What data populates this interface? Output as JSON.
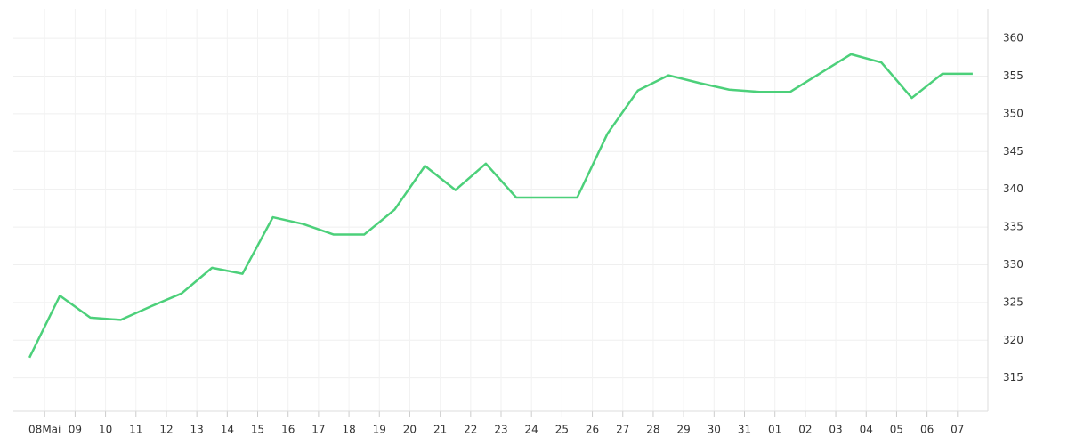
{
  "chart_data": {
    "type": "line",
    "x": [
      0,
      1,
      2,
      3,
      4,
      5,
      6,
      7,
      8,
      9,
      10,
      11,
      12,
      13,
      14,
      15,
      16,
      17,
      18,
      19,
      20,
      21,
      22,
      23,
      24,
      25,
      26,
      27,
      28,
      29,
      30,
      31
    ],
    "series": [
      {
        "color": "#4cd07a",
        "values": [
          317.7,
          325.9,
          323.0,
          322.7,
          324.5,
          326.2,
          329.6,
          328.8,
          336.3,
          335.4,
          334.0,
          334.0,
          337.3,
          343.1,
          339.9,
          343.4,
          338.9,
          338.9,
          338.9,
          347.4,
          353.1,
          355.1,
          354.1,
          353.2,
          352.9,
          352.9,
          355.4,
          357.9,
          356.8,
          352.1,
          355.3,
          355.3
        ]
      }
    ],
    "xlim": [
      -0.53,
      31.5
    ],
    "xticks": [
      {
        "value": 0.5,
        "label": "08Mai"
      },
      {
        "value": 1.5,
        "label": "09"
      },
      {
        "value": 2.5,
        "label": "10"
      },
      {
        "value": 3.5,
        "label": "11"
      },
      {
        "value": 4.5,
        "label": "12"
      },
      {
        "value": 5.5,
        "label": "13"
      },
      {
        "value": 6.5,
        "label": "14"
      },
      {
        "value": 7.5,
        "label": "15"
      },
      {
        "value": 8.5,
        "label": "16"
      },
      {
        "value": 9.5,
        "label": "17"
      },
      {
        "value": 10.5,
        "label": "18"
      },
      {
        "value": 11.5,
        "label": "19"
      },
      {
        "value": 12.5,
        "label": "20"
      },
      {
        "value": 13.5,
        "label": "21"
      },
      {
        "value": 14.5,
        "label": "22"
      },
      {
        "value": 15.5,
        "label": "23"
      },
      {
        "value": 16.5,
        "label": "24"
      },
      {
        "value": 17.5,
        "label": "25"
      },
      {
        "value": 18.5,
        "label": "26"
      },
      {
        "value": 19.5,
        "label": "27"
      },
      {
        "value": 20.5,
        "label": "28"
      },
      {
        "value": 21.5,
        "label": "29"
      },
      {
        "value": 22.5,
        "label": "30"
      },
      {
        "value": 23.5,
        "label": "31"
      },
      {
        "value": 24.5,
        "label": "01"
      },
      {
        "value": 25.5,
        "label": "02"
      },
      {
        "value": 26.5,
        "label": "03"
      },
      {
        "value": 27.5,
        "label": "04"
      },
      {
        "value": 28.5,
        "label": "05"
      },
      {
        "value": 29.5,
        "label": "06"
      },
      {
        "value": 30.5,
        "label": "07"
      }
    ],
    "ylim": [
      310.6,
      363.9
    ],
    "yticks": [
      315,
      320,
      325,
      330,
      335,
      340,
      345,
      350,
      355,
      360
    ],
    "grid": true,
    "y_axis_side": "right"
  }
}
